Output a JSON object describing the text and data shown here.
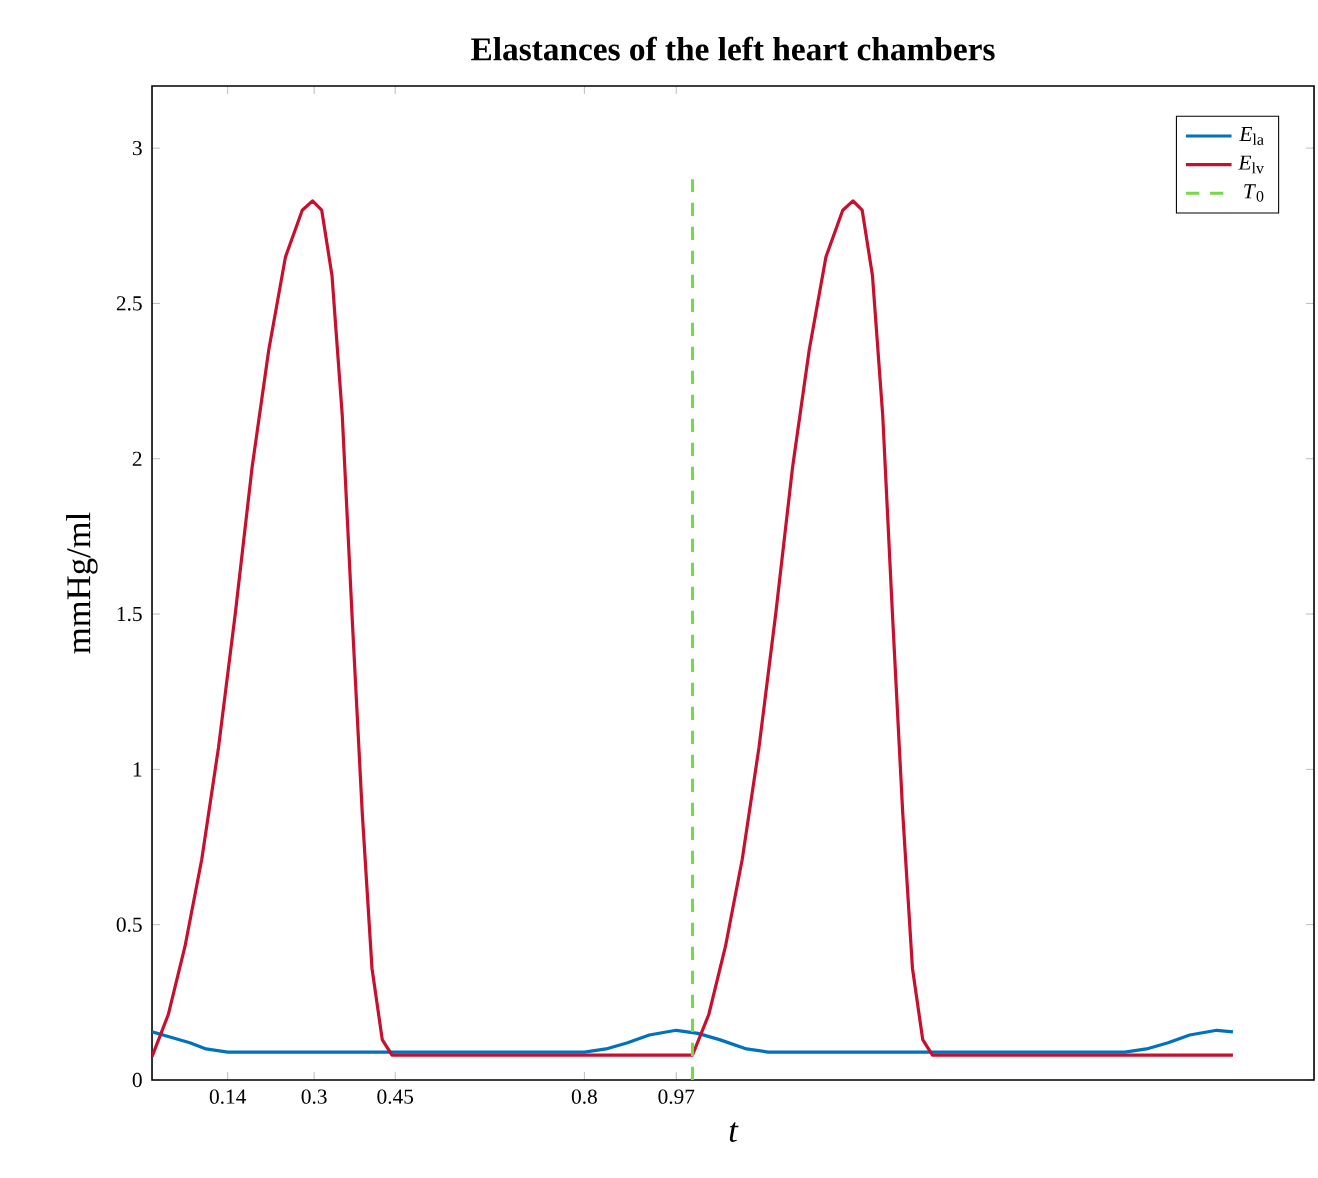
{
  "chart_data": {
    "type": "line",
    "title": "Elastances of the left heart chambers",
    "xlabel": "t",
    "ylabel": "mmHg/ml",
    "xlim": [
      0,
      2.15
    ],
    "ylim": [
      0,
      3.2
    ],
    "xticks": [
      0.14,
      0.3,
      0.45,
      0.8,
      0.97
    ],
    "yticks": [
      0,
      0.5,
      1,
      1.5,
      2,
      2.5,
      3
    ],
    "legend": "top right",
    "grid": false,
    "series": [
      {
        "name": "*E*$_{la}$",
        "color": "#0072bd",
        "line_style": "solid",
        "x": [
          0,
          0.03,
          0.07,
          0.1,
          0.14,
          0.8,
          0.84,
          0.88,
          0.92,
          0.97,
          1.01,
          1.05,
          1.1,
          1.14,
          1.8,
          1.84,
          1.88,
          1.92,
          1.97,
          2.0
        ],
        "values": [
          0.155,
          0.14,
          0.12,
          0.1,
          0.09,
          0.09,
          0.1,
          0.12,
          0.145,
          0.16,
          0.15,
          0.13,
          0.1,
          0.09,
          0.09,
          0.1,
          0.12,
          0.145,
          0.16,
          0.155
        ]
      },
      {
        "name": "*E*$_{lv}$",
        "color": "#c8102e",
        "line_style": "solid",
        "x": [
          0,
          0.03,
          0.061,
          0.092,
          0.123,
          0.154,
          0.185,
          0.216,
          0.247,
          0.278,
          0.297,
          0.314,
          0.333,
          0.352,
          0.37,
          0.389,
          0.407,
          0.426,
          0.444,
          1.0,
          1.03,
          1.061,
          1.092,
          1.123,
          1.154,
          1.185,
          1.216,
          1.247,
          1.278,
          1.297,
          1.314,
          1.333,
          1.352,
          1.37,
          1.389,
          1.407,
          1.426,
          1.444,
          2.0
        ],
        "values": [
          0.075,
          0.21,
          0.43,
          0.71,
          1.07,
          1.5,
          1.97,
          2.35,
          2.65,
          2.8,
          2.83,
          2.8,
          2.59,
          2.14,
          1.5,
          0.86,
          0.36,
          0.13,
          0.08,
          0.08,
          0.21,
          0.43,
          0.71,
          1.07,
          1.5,
          1.97,
          2.35,
          2.65,
          2.8,
          2.83,
          2.8,
          2.59,
          2.14,
          1.5,
          0.86,
          0.36,
          0.13,
          0.08,
          0.08
        ]
      },
      {
        "name": "*T*$_{0}$",
        "color": "#77d84a",
        "line_style": "dashed",
        "x": [
          1.0,
          1.0
        ],
        "values": [
          0,
          2.9
        ]
      }
    ]
  }
}
